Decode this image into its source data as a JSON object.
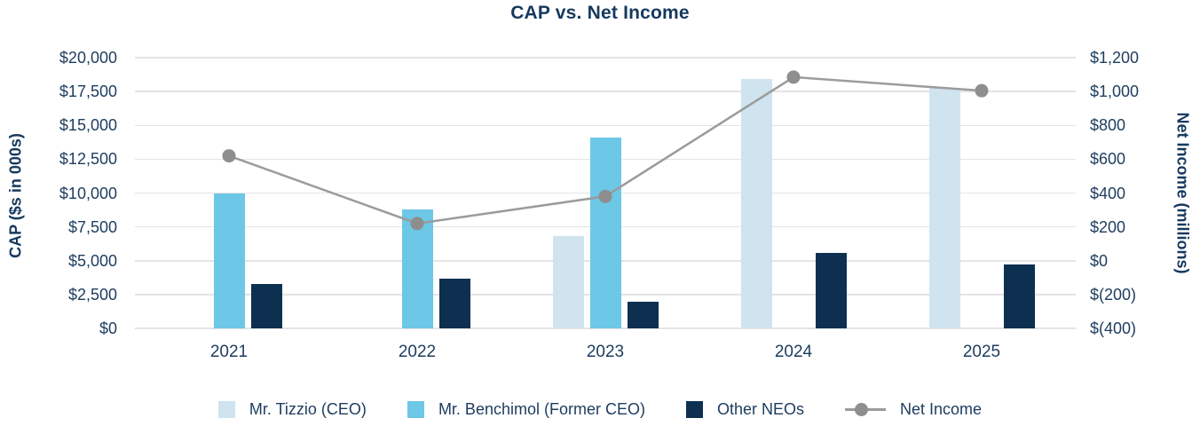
{
  "chart_data": {
    "type": "bar+line",
    "title": "CAP vs. Net Income",
    "categories": [
      "2021",
      "2022",
      "2023",
      "2024",
      "2025"
    ],
    "series": [
      {
        "name": "Mr. Tizzio (CEO)",
        "type": "bar",
        "axis": "left",
        "color": "#cfe4ef",
        "values": [
          null,
          null,
          6800,
          18400,
          17750
        ]
      },
      {
        "name": "Mr. Benchimol (Former CEO)",
        "type": "bar",
        "axis": "left",
        "color": "#6dc7e6",
        "values": [
          10000,
          8800,
          14100,
          null,
          null
        ]
      },
      {
        "name": "Other NEOs",
        "type": "bar",
        "axis": "left",
        "color": "#0e3050",
        "values": [
          3300,
          3650,
          1950,
          5550,
          4700
        ]
      },
      {
        "name": "Net Income",
        "type": "line",
        "axis": "right",
        "color": "#9b9b9b",
        "marker_color": "#8e8e8e",
        "values": [
          620,
          220,
          380,
          1085,
          1005
        ]
      }
    ],
    "left_axis": {
      "label": "CAP ($s in 000s)",
      "min": 0,
      "max": 20000,
      "step": 2500,
      "ticks": [
        {
          "value": 0,
          "label": "$0"
        },
        {
          "value": 2500,
          "label": "$2,500"
        },
        {
          "value": 5000,
          "label": "$5,000"
        },
        {
          "value": 7500,
          "label": "$7,500"
        },
        {
          "value": 10000,
          "label": "$10,000"
        },
        {
          "value": 12500,
          "label": "$12,500"
        },
        {
          "value": 15000,
          "label": "$15,000"
        },
        {
          "value": 17500,
          "label": "$17,500"
        },
        {
          "value": 20000,
          "label": "$20,000"
        }
      ]
    },
    "right_axis": {
      "label": "Net Income (millions)",
      "min": -400,
      "max": 1200,
      "step": 200,
      "ticks": [
        {
          "value": -400,
          "label": "$(400)"
        },
        {
          "value": -200,
          "label": "$(200)"
        },
        {
          "value": 0,
          "label": "$0"
        },
        {
          "value": 200,
          "label": "$200"
        },
        {
          "value": 400,
          "label": "$400"
        },
        {
          "value": 600,
          "label": "$600"
        },
        {
          "value": 800,
          "label": "$800"
        },
        {
          "value": 1000,
          "label": "$1,000"
        },
        {
          "value": 1200,
          "label": "$1,200"
        }
      ]
    },
    "legend_position": "bottom",
    "grid": true,
    "text_color": "#1d3c5e",
    "gridline_color": "#e4e4e4"
  }
}
